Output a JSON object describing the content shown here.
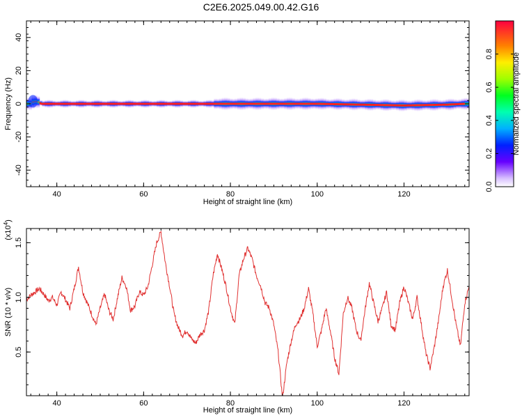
{
  "title": "C2E6.2025.049.00.42.G16",
  "chart_data": [
    {
      "type": "heatmap",
      "xlabel": "Height of straight line (km)",
      "ylabel": "Frequency (Hz)",
      "xlim": [
        33,
        135
      ],
      "ylim": [
        -50,
        50
      ],
      "xticks": [
        40,
        60,
        80,
        100,
        120
      ],
      "yticks": [
        -40,
        -20,
        0,
        20,
        40
      ],
      "colorbar": {
        "label": "Normalized spectral amplitude",
        "range": [
          0,
          1
        ],
        "ticks": [
          "0.0",
          "0.2",
          "0.4",
          "0.6",
          "0.8"
        ]
      },
      "ridge_center_hz": [
        [
          33.5,
          0
        ],
        [
          34.5,
          1.5
        ],
        [
          35.5,
          1.0
        ],
        [
          36.5,
          0
        ],
        [
          40,
          0
        ],
        [
          60,
          0
        ],
        [
          72,
          0
        ],
        [
          80,
          0
        ],
        [
          90,
          0
        ],
        [
          100,
          0
        ],
        [
          110,
          -0.5
        ],
        [
          120,
          -1.0
        ],
        [
          130,
          -0.5
        ],
        [
          134,
          0
        ]
      ]
    },
    {
      "type": "line",
      "xlabel": "Height of straight line (km)",
      "ylabel": "SNR (10 * v/v)",
      "y_multiplier": "(x10^4)",
      "xlim": [
        33,
        135
      ],
      "ylim": [
        0.1,
        1.63
      ],
      "xticks": [
        40,
        60,
        80,
        100,
        120
      ],
      "yticks": [
        "0.5",
        "1.0",
        "1.5"
      ],
      "color": "#e03030",
      "points": [
        [
          33,
          0.98
        ],
        [
          34,
          1.02
        ],
        [
          35,
          1.05
        ],
        [
          36,
          1.08
        ],
        [
          37,
          1.03
        ],
        [
          38,
          0.97
        ],
        [
          39,
          1.0
        ],
        [
          40,
          0.93
        ],
        [
          41,
          1.05
        ],
        [
          42,
          0.98
        ],
        [
          43,
          0.9
        ],
        [
          44,
          1.08
        ],
        [
          45,
          1.28
        ],
        [
          46,
          1.05
        ],
        [
          47,
          0.95
        ],
        [
          48,
          0.85
        ],
        [
          49,
          0.75
        ],
        [
          50,
          0.9
        ],
        [
          51,
          1.03
        ],
        [
          52,
          0.88
        ],
        [
          53,
          0.8
        ],
        [
          54,
          1.0
        ],
        [
          55,
          1.18
        ],
        [
          56,
          1.1
        ],
        [
          57,
          0.88
        ],
        [
          58,
          0.92
        ],
        [
          59,
          1.05
        ],
        [
          60,
          1.02
        ],
        [
          61,
          1.1
        ],
        [
          62,
          1.3
        ],
        [
          63,
          1.5
        ],
        [
          64,
          1.6
        ],
        [
          65,
          1.32
        ],
        [
          66,
          1.1
        ],
        [
          67,
          0.85
        ],
        [
          68,
          0.72
        ],
        [
          69,
          0.65
        ],
        [
          70,
          0.7
        ],
        [
          71,
          0.62
        ],
        [
          72,
          0.58
        ],
        [
          73,
          0.66
        ],
        [
          74,
          0.7
        ],
        [
          75,
          0.88
        ],
        [
          76,
          1.2
        ],
        [
          77,
          1.4
        ],
        [
          78,
          1.26
        ],
        [
          79,
          1.1
        ],
        [
          80,
          0.9
        ],
        [
          81,
          0.75
        ],
        [
          82,
          1.2
        ],
        [
          83,
          1.35
        ],
        [
          84,
          1.45
        ],
        [
          85,
          1.35
        ],
        [
          86,
          1.2
        ],
        [
          87,
          1.1
        ],
        [
          88,
          0.95
        ],
        [
          89,
          0.9
        ],
        [
          90,
          0.75
        ],
        [
          91,
          0.5
        ],
        [
          92,
          0.08
        ],
        [
          93,
          0.4
        ],
        [
          94,
          0.6
        ],
        [
          95,
          0.75
        ],
        [
          96,
          0.8
        ],
        [
          97,
          0.9
        ],
        [
          98,
          1.08
        ],
        [
          99,
          0.85
        ],
        [
          100,
          0.55
        ],
        [
          101,
          0.7
        ],
        [
          102,
          0.9
        ],
        [
          103,
          0.7
        ],
        [
          104,
          0.45
        ],
        [
          105,
          0.3
        ],
        [
          106,
          0.85
        ],
        [
          107,
          1.0
        ],
        [
          108,
          0.9
        ],
        [
          109,
          0.7
        ],
        [
          110,
          0.6
        ],
        [
          111,
          0.88
        ],
        [
          112,
          1.13
        ],
        [
          113,
          0.95
        ],
        [
          114,
          0.78
        ],
        [
          115,
          0.9
        ],
        [
          116,
          1.05
        ],
        [
          117,
          0.75
        ],
        [
          118,
          0.7
        ],
        [
          119,
          0.95
        ],
        [
          120,
          1.1
        ],
        [
          121,
          0.95
        ],
        [
          122,
          0.8
        ],
        [
          123,
          1.0
        ],
        [
          124,
          0.75
        ],
        [
          125,
          0.5
        ],
        [
          126,
          0.35
        ],
        [
          127,
          0.55
        ],
        [
          128,
          0.8
        ],
        [
          129,
          1.1
        ],
        [
          130,
          1.25
        ],
        [
          131,
          1.0
        ],
        [
          132,
          0.75
        ],
        [
          133,
          0.55
        ],
        [
          134,
          0.95
        ],
        [
          135,
          1.1
        ]
      ]
    }
  ]
}
